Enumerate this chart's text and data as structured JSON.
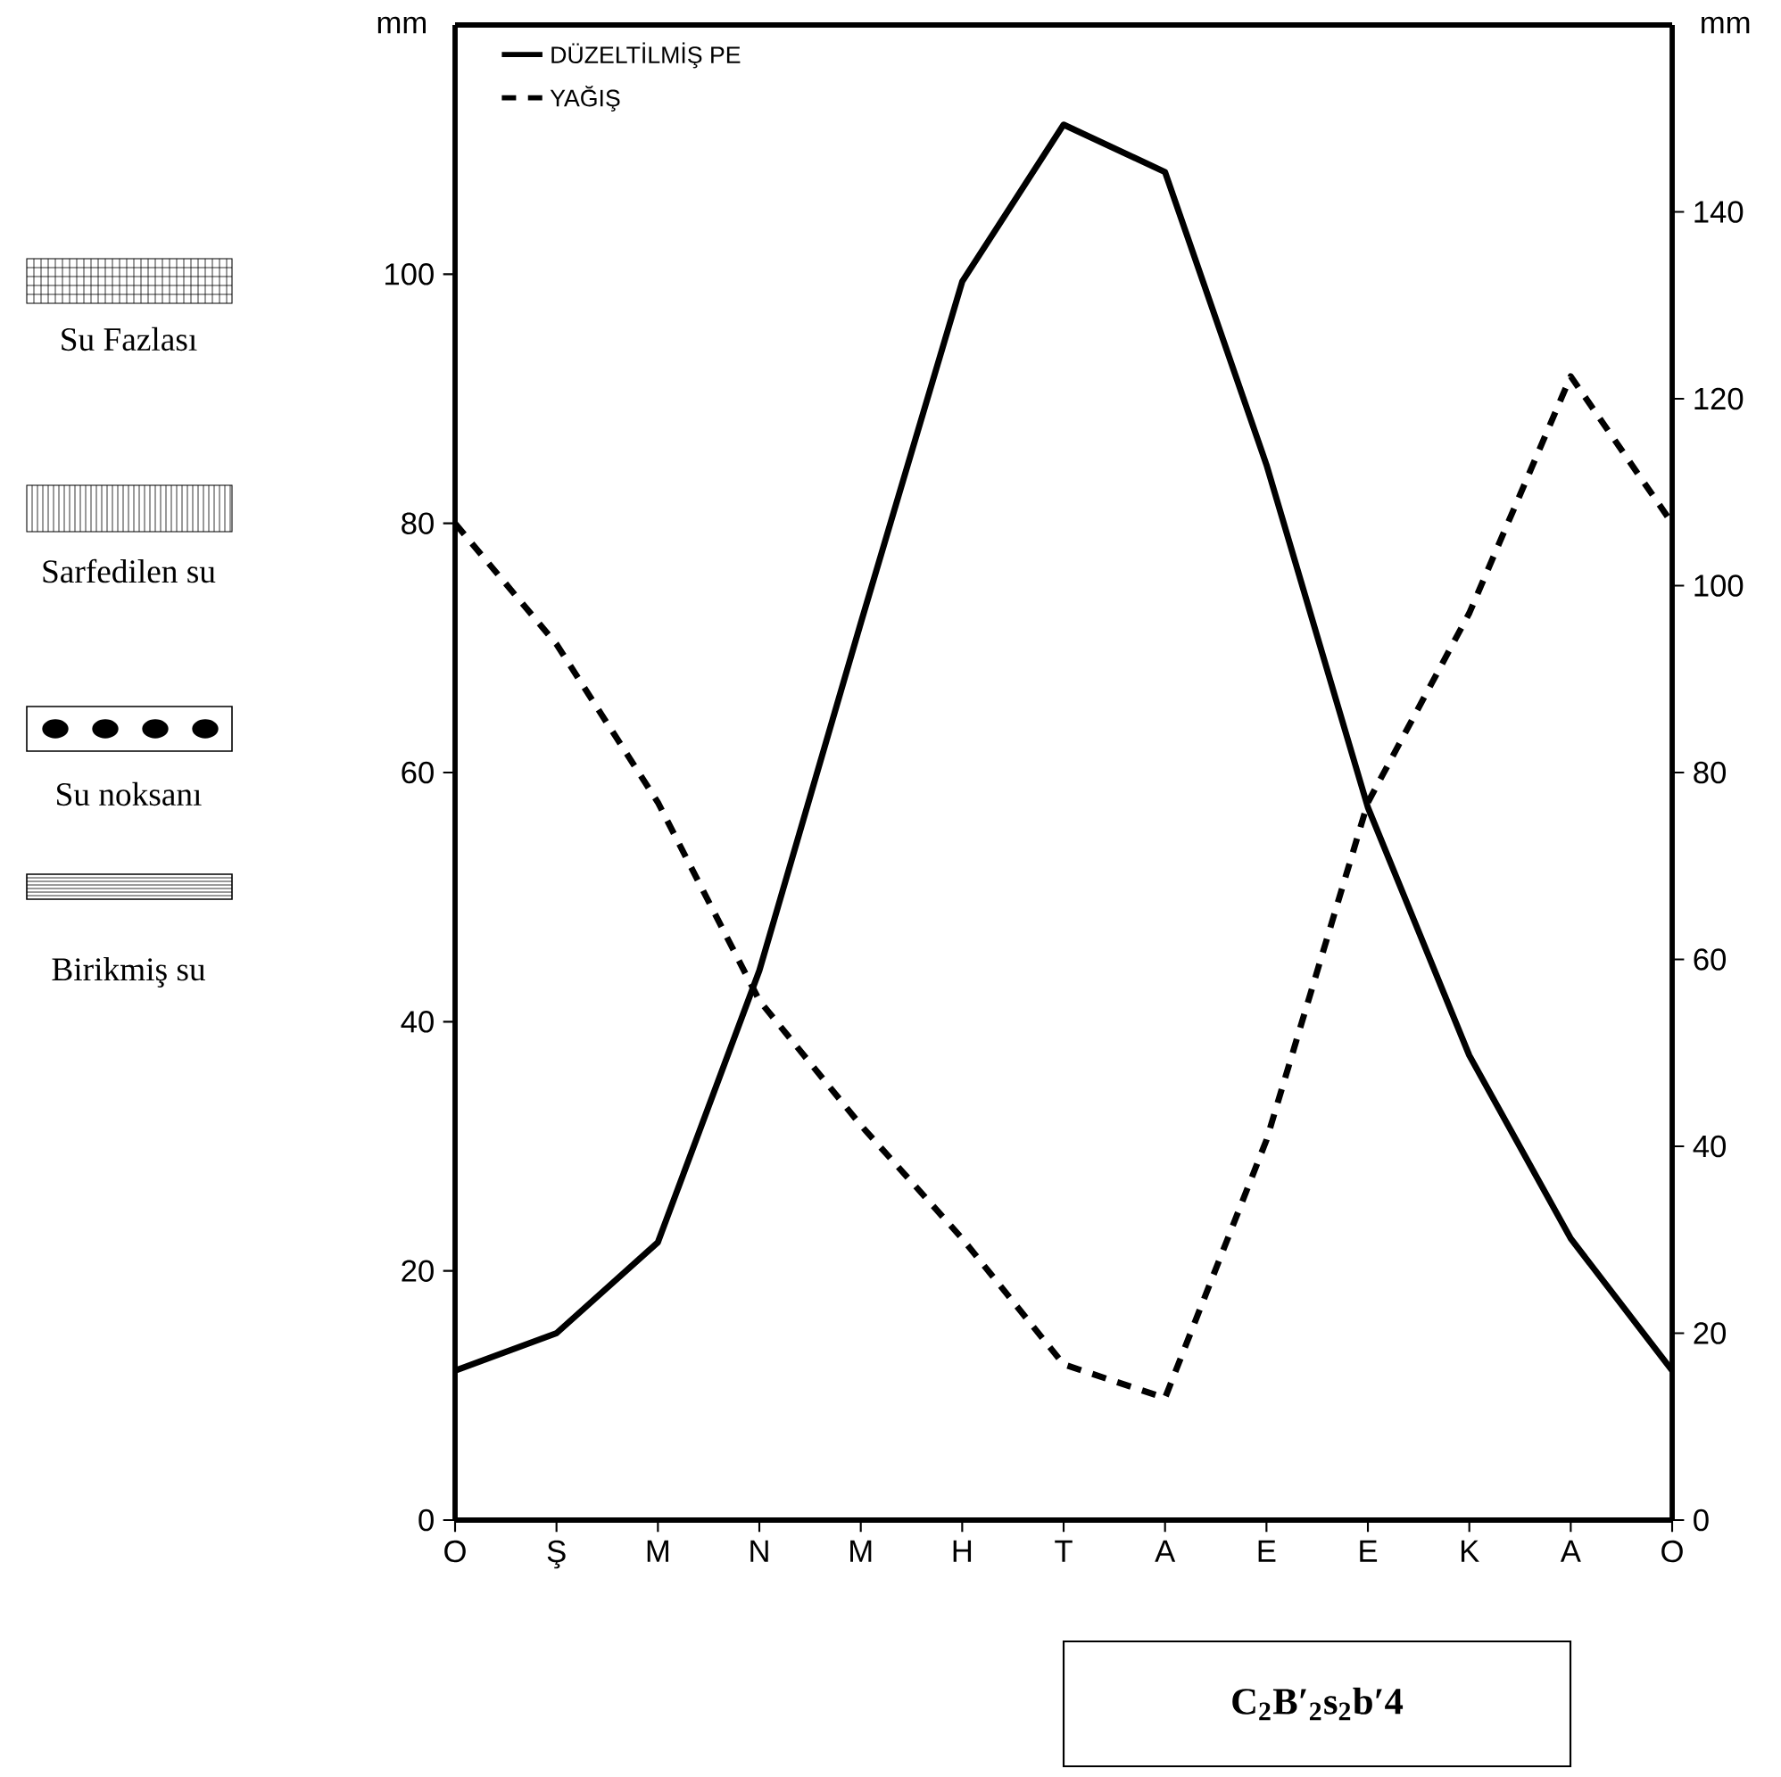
{
  "chart_data": {
    "type": "line",
    "categories": [
      "O",
      "Ş",
      "M",
      "N",
      "M",
      "H",
      "T",
      "A",
      "E",
      "E",
      "K",
      "A",
      "O"
    ],
    "series": [
      {
        "name": "DÜZELTİLMİŞ PE",
        "color": "#000000",
        "line_style": "solid",
        "values": [
          12,
          15,
          22.3,
          44.1,
          72,
          99.4,
          112,
          108.2,
          84.7,
          57.2,
          37.3,
          22.6,
          12
        ]
      },
      {
        "name": "YAĞIŞ",
        "color": "#000000",
        "line_style": "dashed",
        "values": [
          80,
          70.3,
          57.6,
          41.7,
          31.7,
          22.6,
          12.5,
          9.8,
          30.5,
          57.6,
          72.8,
          91.8,
          80
        ]
      }
    ],
    "ylabel": "mm",
    "y2label": "mm",
    "ylim": [
      0,
      120
    ],
    "yticks": [
      0,
      20,
      40,
      60,
      80,
      100
    ],
    "y2lim": [
      0,
      160
    ],
    "y2ticks": [
      0,
      20,
      40,
      60,
      80,
      100,
      120,
      140
    ],
    "legend": "top left",
    "marker": "none",
    "annotations": [
      "Su Fazlası",
      "Sarfedilen su",
      "Su noksanı",
      "Birikmiş su",
      "C$_{2}$B′$_{2}$s$_{2}$b′4"
    ]
  }
}
